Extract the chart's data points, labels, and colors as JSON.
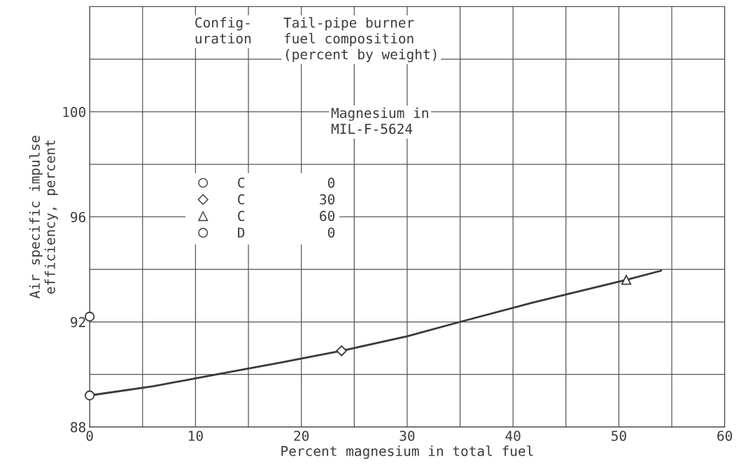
{
  "chart_data": {
    "type": "scatter",
    "xlabel": "Percent magnesium in total fuel",
    "ylabel": "Air specific impulse\nefficiency, percent",
    "xlim": [
      0,
      60
    ],
    "ylim": [
      88,
      104
    ],
    "xticks": [
      0,
      {
        "value": 5,
        "label": null
      },
      10,
      {
        "value": 15,
        "label": null
      },
      20,
      {
        "value": 25,
        "label": null
      },
      30,
      {
        "value": 35,
        "label": null
      },
      40,
      {
        "value": 45,
        "label": null
      },
      50,
      {
        "value": 55,
        "label": null
      },
      60
    ],
    "yticks": [
      88,
      {
        "value": 90,
        "label": null
      },
      92,
      {
        "value": 94,
        "label": null
      },
      96,
      {
        "value": 98,
        "label": null
      },
      100,
      {
        "value": 102,
        "label": null
      }
    ],
    "grid": true,
    "legend": "top left",
    "annotations": [
      "Config-\nuration",
      "Tail-pipe burner\nfuel composition\n(percent by weight)",
      "Magnesium in\nMIL-F-5624"
    ],
    "series": [
      {
        "name": "C          0",
        "marker": "circle",
        "color": "#3a3a3a",
        "x": [
          0
        ],
        "values": [
          89.2
        ]
      },
      {
        "name": "C         30",
        "marker": "diamond",
        "color": "#3a3a3a",
        "x": [
          23.8
        ],
        "values": [
          90.9
        ]
      },
      {
        "name": "C         60",
        "marker": "triangle",
        "color": "#3a3a3a",
        "x": [
          50.7
        ],
        "values": [
          93.6
        ]
      },
      {
        "name": "D          0",
        "marker": "circle",
        "color": "#3a3a3a",
        "x": [
          0
        ],
        "values": [
          92.2
        ]
      },
      {
        "type": "line",
        "marker": "none",
        "color": "#3a3a3a",
        "x": [
          0,
          6,
          12,
          18,
          23.8,
          30,
          35,
          42,
          50.7,
          54
        ],
        "values": [
          89.2,
          89.55,
          90.0,
          90.45,
          90.9,
          91.45,
          92.0,
          92.75,
          93.6,
          93.95
        ]
      }
    ]
  }
}
